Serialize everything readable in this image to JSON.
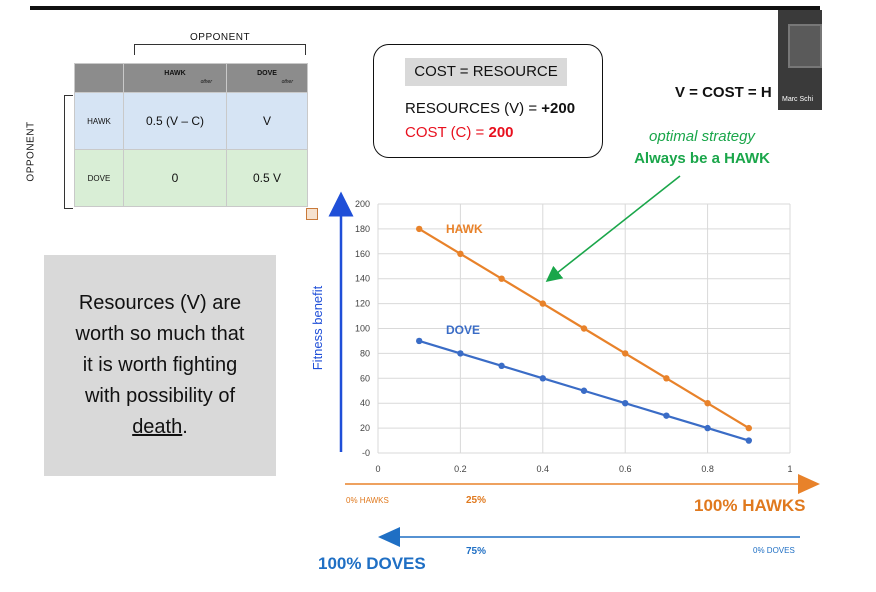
{
  "matrix": {
    "col_header_label": "OPPONENT",
    "row_header_label": "OPPONENT",
    "col_hawk": "HAWK",
    "col_hawk_sub": "other",
    "col_dove": "DOVE",
    "col_dove_sub": "other",
    "row_hawk": "HAWK",
    "row_dove": "DOVE",
    "cells": [
      [
        "0.5 (V – C)",
        "V"
      ],
      [
        "0",
        "0.5 V"
      ]
    ]
  },
  "textbox": {
    "line1": "Resources (V) are",
    "line2": "worth so much that",
    "line3": "it is worth fighting",
    "line4": "with possibility of",
    "line5": "death",
    "line5_end": "."
  },
  "cost_box": {
    "title": "COST = RESOURCE",
    "res_label": "RESOURCES (V) = ",
    "res_value": "+200",
    "cost_label": "COST (C) = ",
    "cost_value": "200"
  },
  "vcost_text": "V = COST = H",
  "webcam_name": "Marc Schi",
  "optimal": {
    "line1": "optimal strategy",
    "line2": "Always be a HAWK"
  },
  "colors": {
    "hawk": "#e8822a",
    "dove": "#3a6cc6",
    "green": "#1aa64a",
    "axis_blue": "#1f4fd8"
  },
  "chart_data": {
    "type": "line",
    "ylabel": "Fitness benefit",
    "xlim": [
      0,
      1
    ],
    "ylim": [
      0,
      200
    ],
    "x_ticks": [
      "0",
      "0.2",
      "0.4",
      "0.6",
      "0.8",
      "1"
    ],
    "y_ticks": [
      "-0",
      "20",
      "40",
      "60",
      "80",
      "100",
      "120",
      "140",
      "160",
      "180",
      "200"
    ],
    "grid": true,
    "series": [
      {
        "name": "HAWK",
        "x": [
          0.1,
          0.2,
          0.3,
          0.4,
          0.5,
          0.6,
          0.7,
          0.8,
          0.9
        ],
        "values": [
          180,
          160,
          140,
          120,
          100,
          80,
          60,
          40,
          20
        ]
      },
      {
        "name": "DOVE",
        "x": [
          0.1,
          0.2,
          0.3,
          0.4,
          0.5,
          0.6,
          0.7,
          0.8,
          0.9
        ],
        "values": [
          90,
          80,
          70,
          60,
          50,
          40,
          30,
          20,
          10
        ]
      }
    ]
  },
  "bottom": {
    "zero_hawks": "0% HAWKS",
    "pct25": "25%",
    "hundred_hawks": "100% HAWKS",
    "pct75": "75%",
    "zero_doves": "0% DOVES",
    "hundred_doves": "100% DOVES"
  }
}
